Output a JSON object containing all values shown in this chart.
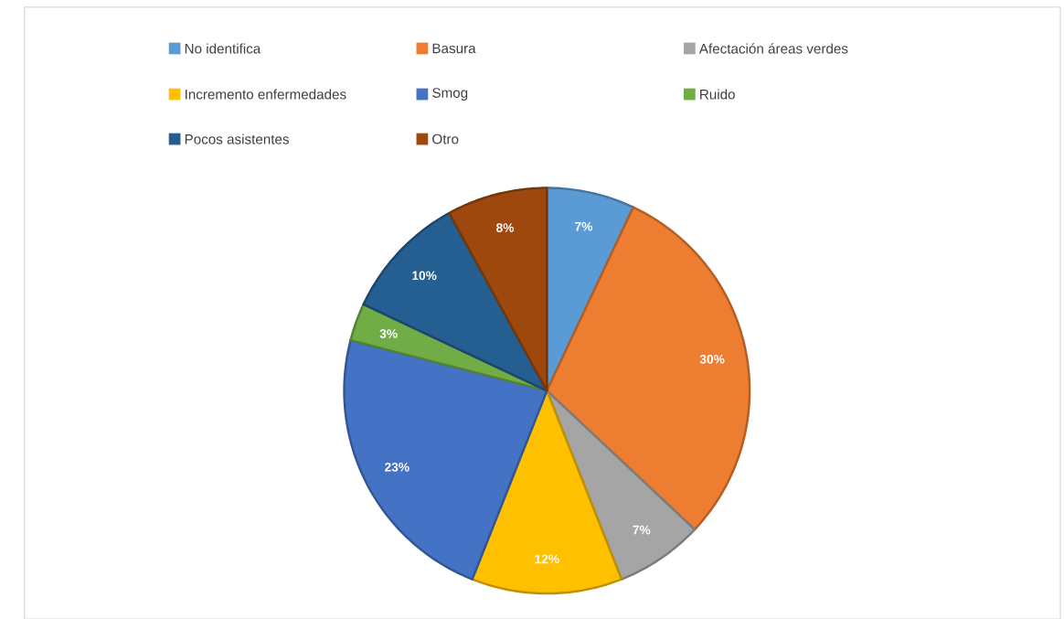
{
  "chart_data": {
    "type": "pie",
    "categories": [
      "No identifica",
      "Basura",
      "Afectación áreas verdes",
      "Incremento enfermedades",
      "Smog",
      "Ruido",
      "Pocos asistentes",
      "Otro"
    ],
    "values": [
      7,
      30,
      7,
      12,
      23,
      3,
      10,
      8
    ],
    "value_labels": [
      "7%",
      "30%",
      "7%",
      "12%",
      "23%",
      "3%",
      "10%",
      "8%"
    ],
    "colors": [
      "#5b9bd5",
      "#ed7d31",
      "#a5a5a5",
      "#ffc000",
      "#4472c4",
      "#70ad47",
      "#255e91",
      "#9e480e"
    ],
    "legend": "top"
  }
}
